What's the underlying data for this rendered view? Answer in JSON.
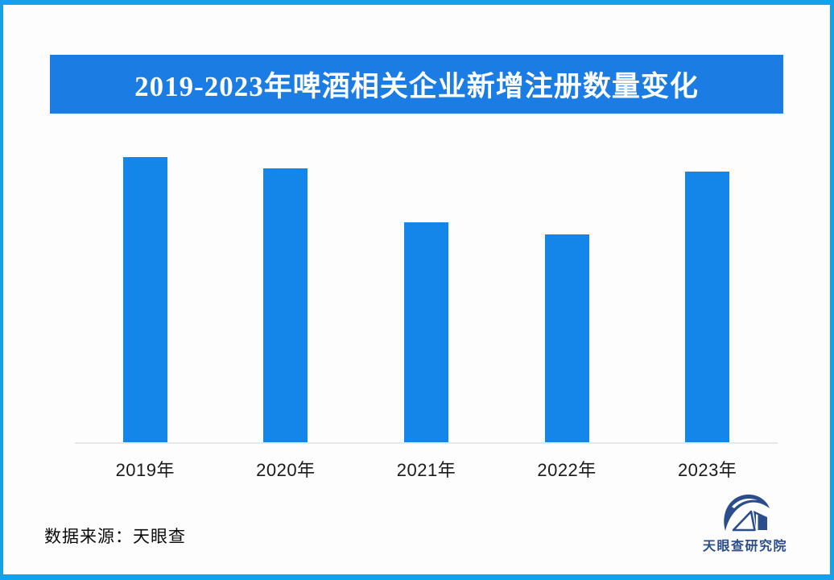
{
  "title": "2019-2023年啤酒相关企业新增注册数量变化",
  "chart_data": {
    "type": "bar",
    "title": "2019-2023年啤酒相关企业新增注册数量变化",
    "categories": [
      "2019年",
      "2020年",
      "2021年",
      "2022年",
      "2023年"
    ],
    "values": [
      100,
      96,
      77,
      73,
      95
    ],
    "values_unit": "relative bar height, % of tallest bar (chart displays no numeric axis or data labels)",
    "xlabel": "",
    "ylabel": "",
    "grid": false,
    "legend": null,
    "axis_range_note": "only a light baseline axis is drawn"
  },
  "source": {
    "label": "数据来源：天眼查"
  },
  "logo": {
    "text": "天眼查研究院"
  },
  "colors": {
    "frame_border": "#14a0ea",
    "banner_bg": "#1b7ce4",
    "bar_fill": "#1486e9",
    "axis_line": "#e8e8e8",
    "logo_navy": "#2b4d8c",
    "background": "#fdfdfd",
    "title_text": "#ffffff"
  }
}
